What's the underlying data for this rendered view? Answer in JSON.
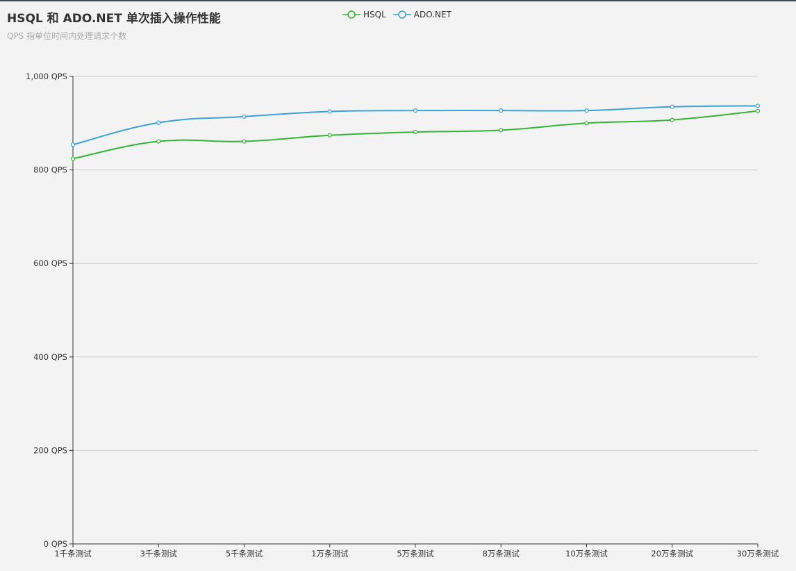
{
  "chart_data": {
    "type": "line",
    "title": "HSQL 和 ADO.NET 单次插入操作性能",
    "subtitle": "QPS 指单位时间内处理请求个数",
    "categories": [
      "1千条测试",
      "3千条测试",
      "5千条测试",
      "1万条测试",
      "5万条测试",
      "8万条测试",
      "10万条测试",
      "20万条测试",
      "30万条测试"
    ],
    "series": [
      {
        "name": "HSQL",
        "color": "#33b533",
        "values": [
          824,
          861,
          861,
          874,
          881,
          885,
          900,
          907,
          926
        ]
      },
      {
        "name": "ADO.NET",
        "color": "#3aa0d8",
        "values": [
          854,
          901,
          914,
          925,
          927,
          927,
          927,
          935,
          937
        ]
      }
    ],
    "ylim": [
      0,
      1000
    ],
    "yticks": [
      0,
      200,
      400,
      600,
      800,
      1000
    ],
    "ytick_labels": [
      "0 QPS",
      "200 QPS",
      "400 QPS",
      "600 QPS",
      "800 QPS",
      "1,000 QPS"
    ],
    "grid": true,
    "smooth": true,
    "legend_position": "top-center"
  }
}
